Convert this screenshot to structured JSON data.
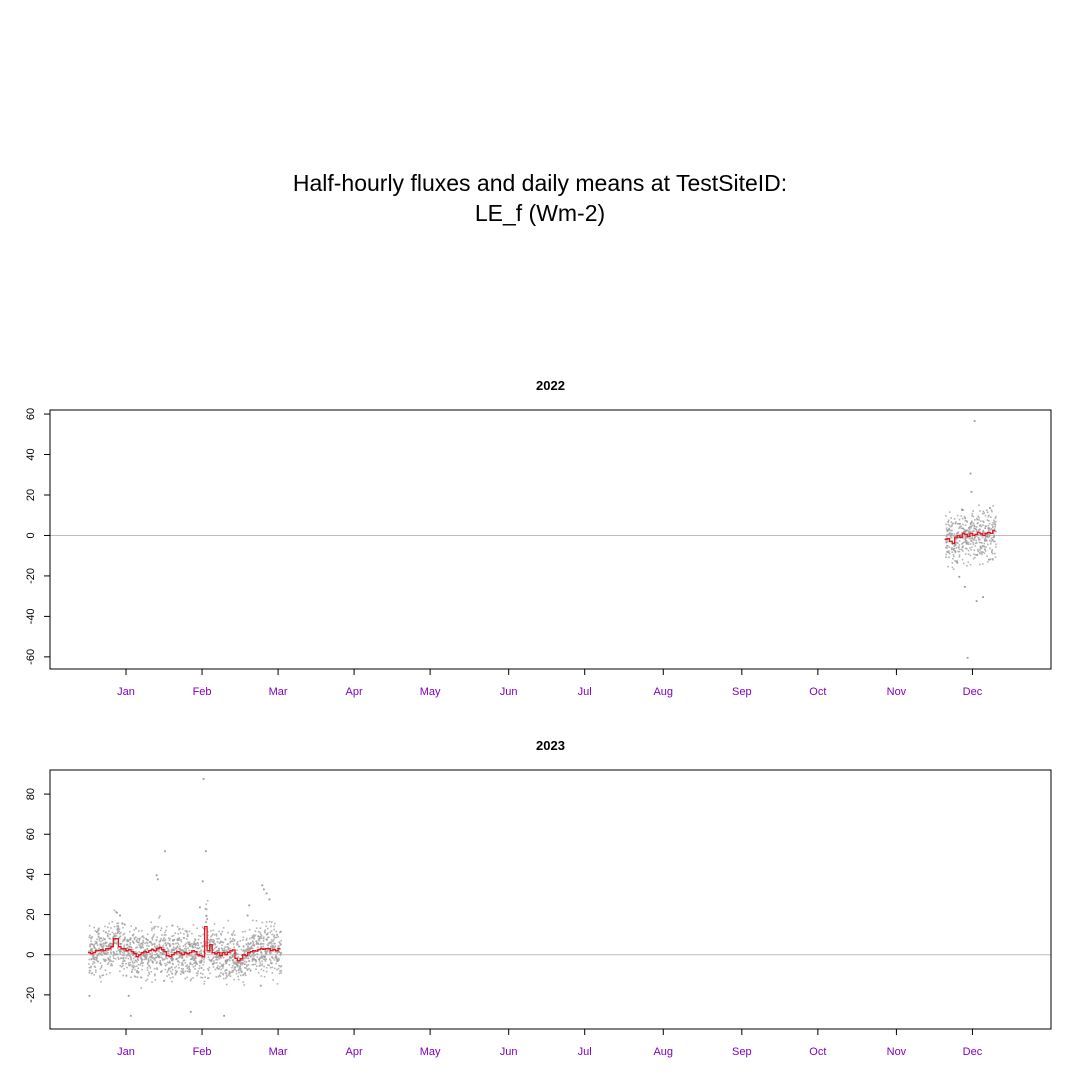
{
  "title": {
    "line1": "Half-hourly fluxes and daily means at TestSiteID:",
    "line2": "LE_f (Wm-2)"
  },
  "colors": {
    "month_label": "#7f00c0",
    "daily_mean": "#e8141e",
    "half_hourly": "#9a9a9a",
    "zero_line": "#bdbdbd"
  },
  "chart_data": [
    {
      "type": "scatter",
      "title": "2022",
      "xlabel": "",
      "ylabel": "",
      "x_unit": "day of year",
      "xlim": [
        -15,
        380
      ],
      "ylim": [
        -66,
        62
      ],
      "yticks": [
        -60,
        -40,
        -20,
        0,
        20,
        40,
        60
      ],
      "month_labels": [
        "Jan",
        "Feb",
        "Mar",
        "Apr",
        "May",
        "Jun",
        "Jul",
        "Aug",
        "Sep",
        "Oct",
        "Nov",
        "Dec"
      ],
      "month_ticks": [
        15,
        45,
        75,
        105,
        135,
        166,
        196,
        227,
        258,
        288,
        319,
        349
      ],
      "zero_line": 0,
      "series": [
        {
          "type": "step",
          "x": [
            338,
            339,
            340,
            341,
            342,
            343,
            344,
            345,
            346,
            347,
            348,
            349,
            350,
            351,
            352,
            353,
            354,
            355,
            356,
            357
          ],
          "values": [
            -2,
            -1.5,
            -3,
            -4,
            -1,
            0,
            -1,
            1,
            0.5,
            -0.5,
            1,
            0,
            0.5,
            1.5,
            0.8,
            0,
            1,
            1.5,
            1,
            2.5
          ]
        },
        {
          "type": "scatter",
          "x_range": [
            338,
            358
          ],
          "spread": 6,
          "outliers": [
            [
              349,
              57
            ],
            [
              347,
              31
            ],
            [
              348,
              22
            ],
            [
              345,
              -25
            ],
            [
              350,
              -32
            ],
            [
              346,
              -60
            ],
            [
              352,
              -30
            ],
            [
              343,
              -20
            ],
            [
              344,
              13
            ],
            [
              355,
              14
            ]
          ]
        }
      ]
    },
    {
      "type": "scatter",
      "title": "2023",
      "xlabel": "",
      "ylabel": "",
      "x_unit": "day of year",
      "xlim": [
        -15,
        380
      ],
      "ylim": [
        -37,
        92
      ],
      "yticks": [
        -20,
        0,
        20,
        40,
        60,
        80
      ],
      "month_labels": [
        "Jan",
        "Feb",
        "Mar",
        "Apr",
        "May",
        "Jun",
        "Jul",
        "Aug",
        "Sep",
        "Oct",
        "Nov",
        "Dec"
      ],
      "month_ticks": [
        15,
        45,
        75,
        105,
        135,
        166,
        196,
        227,
        258,
        288,
        319,
        349
      ],
      "zero_line": 0,
      "series": [
        {
          "type": "step",
          "x": [
            0,
            1,
            2,
            3,
            4,
            5,
            6,
            7,
            8,
            9,
            10,
            11,
            12,
            13,
            14,
            15,
            16,
            17,
            18,
            19,
            20,
            21,
            22,
            23,
            24,
            25,
            26,
            27,
            28,
            29,
            30,
            31,
            32,
            33,
            34,
            35,
            36,
            37,
            38,
            39,
            40,
            41,
            42,
            43,
            44,
            45,
            46,
            47,
            48,
            49,
            50,
            51,
            52,
            53,
            54,
            55,
            56,
            57,
            58,
            59,
            60,
            61,
            62,
            63,
            64,
            65,
            66,
            67,
            68,
            69,
            70,
            71,
            72,
            73,
            74,
            75
          ],
          "values": [
            1,
            0.5,
            1,
            2,
            2,
            2.5,
            2,
            3,
            3,
            4,
            8,
            8,
            4,
            3,
            3,
            2,
            2.5,
            1.5,
            0.5,
            -1,
            0,
            1,
            1.5,
            1.2,
            2,
            2.5,
            2,
            3,
            3.5,
            2.5,
            1.5,
            -0.5,
            -1,
            0,
            1,
            1.5,
            0.8,
            0,
            1,
            0.5,
            1,
            2,
            1.5,
            0,
            -0.5,
            -1,
            14,
            2,
            5,
            1,
            0.5,
            1,
            -0.5,
            1,
            0,
            1.2,
            2,
            2.4,
            -1.8,
            -3,
            -2,
            0,
            -0.5,
            1,
            1.5,
            2,
            1.8,
            2.5,
            3,
            2.7,
            3,
            3,
            2,
            2.5,
            2,
            3
          ]
        },
        {
          "type": "scatter",
          "x_range": [
            0,
            76
          ],
          "spread": 6,
          "outliers": [
            [
              30,
              52
            ],
            [
              26,
              40
            ],
            [
              27,
              38
            ],
            [
              12,
              20
            ],
            [
              13,
              16
            ],
            [
              32,
              15
            ],
            [
              45,
              88
            ],
            [
              46,
              52
            ],
            [
              44,
              37
            ],
            [
              43,
              24
            ],
            [
              68,
              35
            ],
            [
              69,
              33
            ],
            [
              70,
              31
            ],
            [
              71,
              28
            ],
            [
              16,
              -30
            ],
            [
              15,
              -20
            ],
            [
              40,
              -28
            ],
            [
              53,
              -30
            ],
            [
              0,
              -20
            ],
            [
              67,
              -15
            ],
            [
              62,
              20
            ],
            [
              63,
              25
            ]
          ]
        }
      ]
    }
  ]
}
